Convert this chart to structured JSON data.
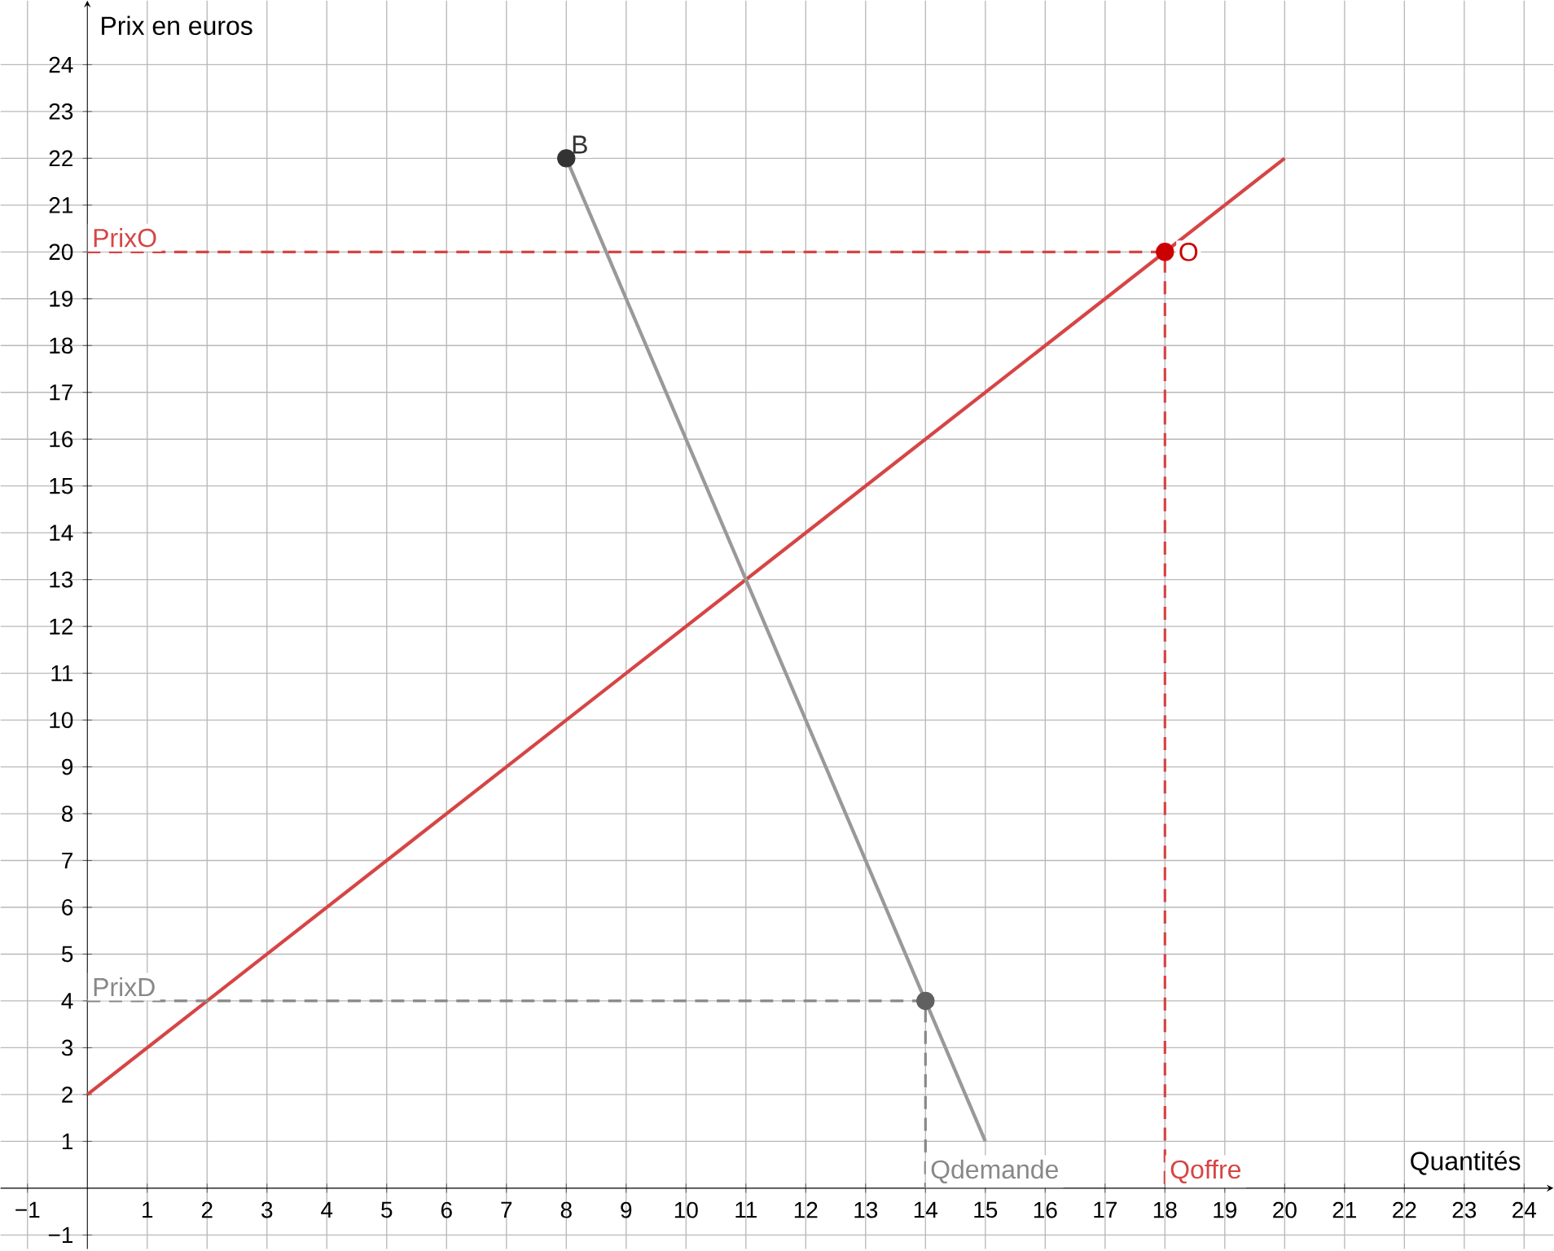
{
  "chart_data": {
    "type": "line",
    "xlabel": "Quantités",
    "ylabel": "Prix en euros",
    "xlim": [
      -1.45,
      24.49
    ],
    "ylim": [
      -1.3,
      25.37
    ],
    "xticks": [
      {
        "value": -1,
        "label": "−1"
      },
      1,
      2,
      3,
      4,
      5,
      6,
      7,
      8,
      9,
      10,
      11,
      12,
      13,
      14,
      15,
      16,
      17,
      18,
      19,
      20,
      21,
      22,
      23,
      24
    ],
    "yticks": [
      {
        "value": -1,
        "label": "−1"
      },
      1,
      2,
      3,
      4,
      5,
      6,
      7,
      8,
      9,
      10,
      11,
      12,
      13,
      14,
      15,
      16,
      17,
      18,
      19,
      20,
      21,
      22,
      23,
      24
    ],
    "grid": true,
    "series": [
      {
        "color": "#d64545",
        "x": [
          0,
          20
        ],
        "values": [
          2,
          22
        ]
      },
      {
        "color": "#999999",
        "x": [
          8,
          15
        ],
        "values": [
          22,
          1
        ]
      },
      {
        "line_style": "dashed",
        "color": "#d64545",
        "x": [
          0,
          18,
          18
        ],
        "values": [
          20,
          20,
          0
        ]
      },
      {
        "line_style": "dashed",
        "color": "#888888",
        "x": [
          0,
          14,
          14
        ],
        "values": [
          4,
          4,
          0
        ]
      },
      {
        "type": "scatter",
        "color": "#cc0000",
        "x": [
          18
        ],
        "values": [
          20
        ]
      },
      {
        "type": "scatter",
        "color": "#606060",
        "x": [
          14
        ],
        "values": [
          4
        ]
      },
      {
        "type": "scatter",
        "color": "#333333",
        "x": [
          8
        ],
        "values": [
          22
        ]
      }
    ],
    "annotations": [
      {
        "text": "B",
        "x": 8,
        "y": 22
      },
      {
        "text": "O",
        "x": 18,
        "y": 20
      },
      {
        "text": "PrixO",
        "x": 0,
        "y": 20
      },
      {
        "text": "PrixD",
        "x": 0,
        "y": 4
      },
      {
        "text": "Qdemande",
        "x": 14,
        "y": 0
      },
      {
        "text": "Qoffre",
        "x": 18,
        "y": 0
      }
    ]
  }
}
